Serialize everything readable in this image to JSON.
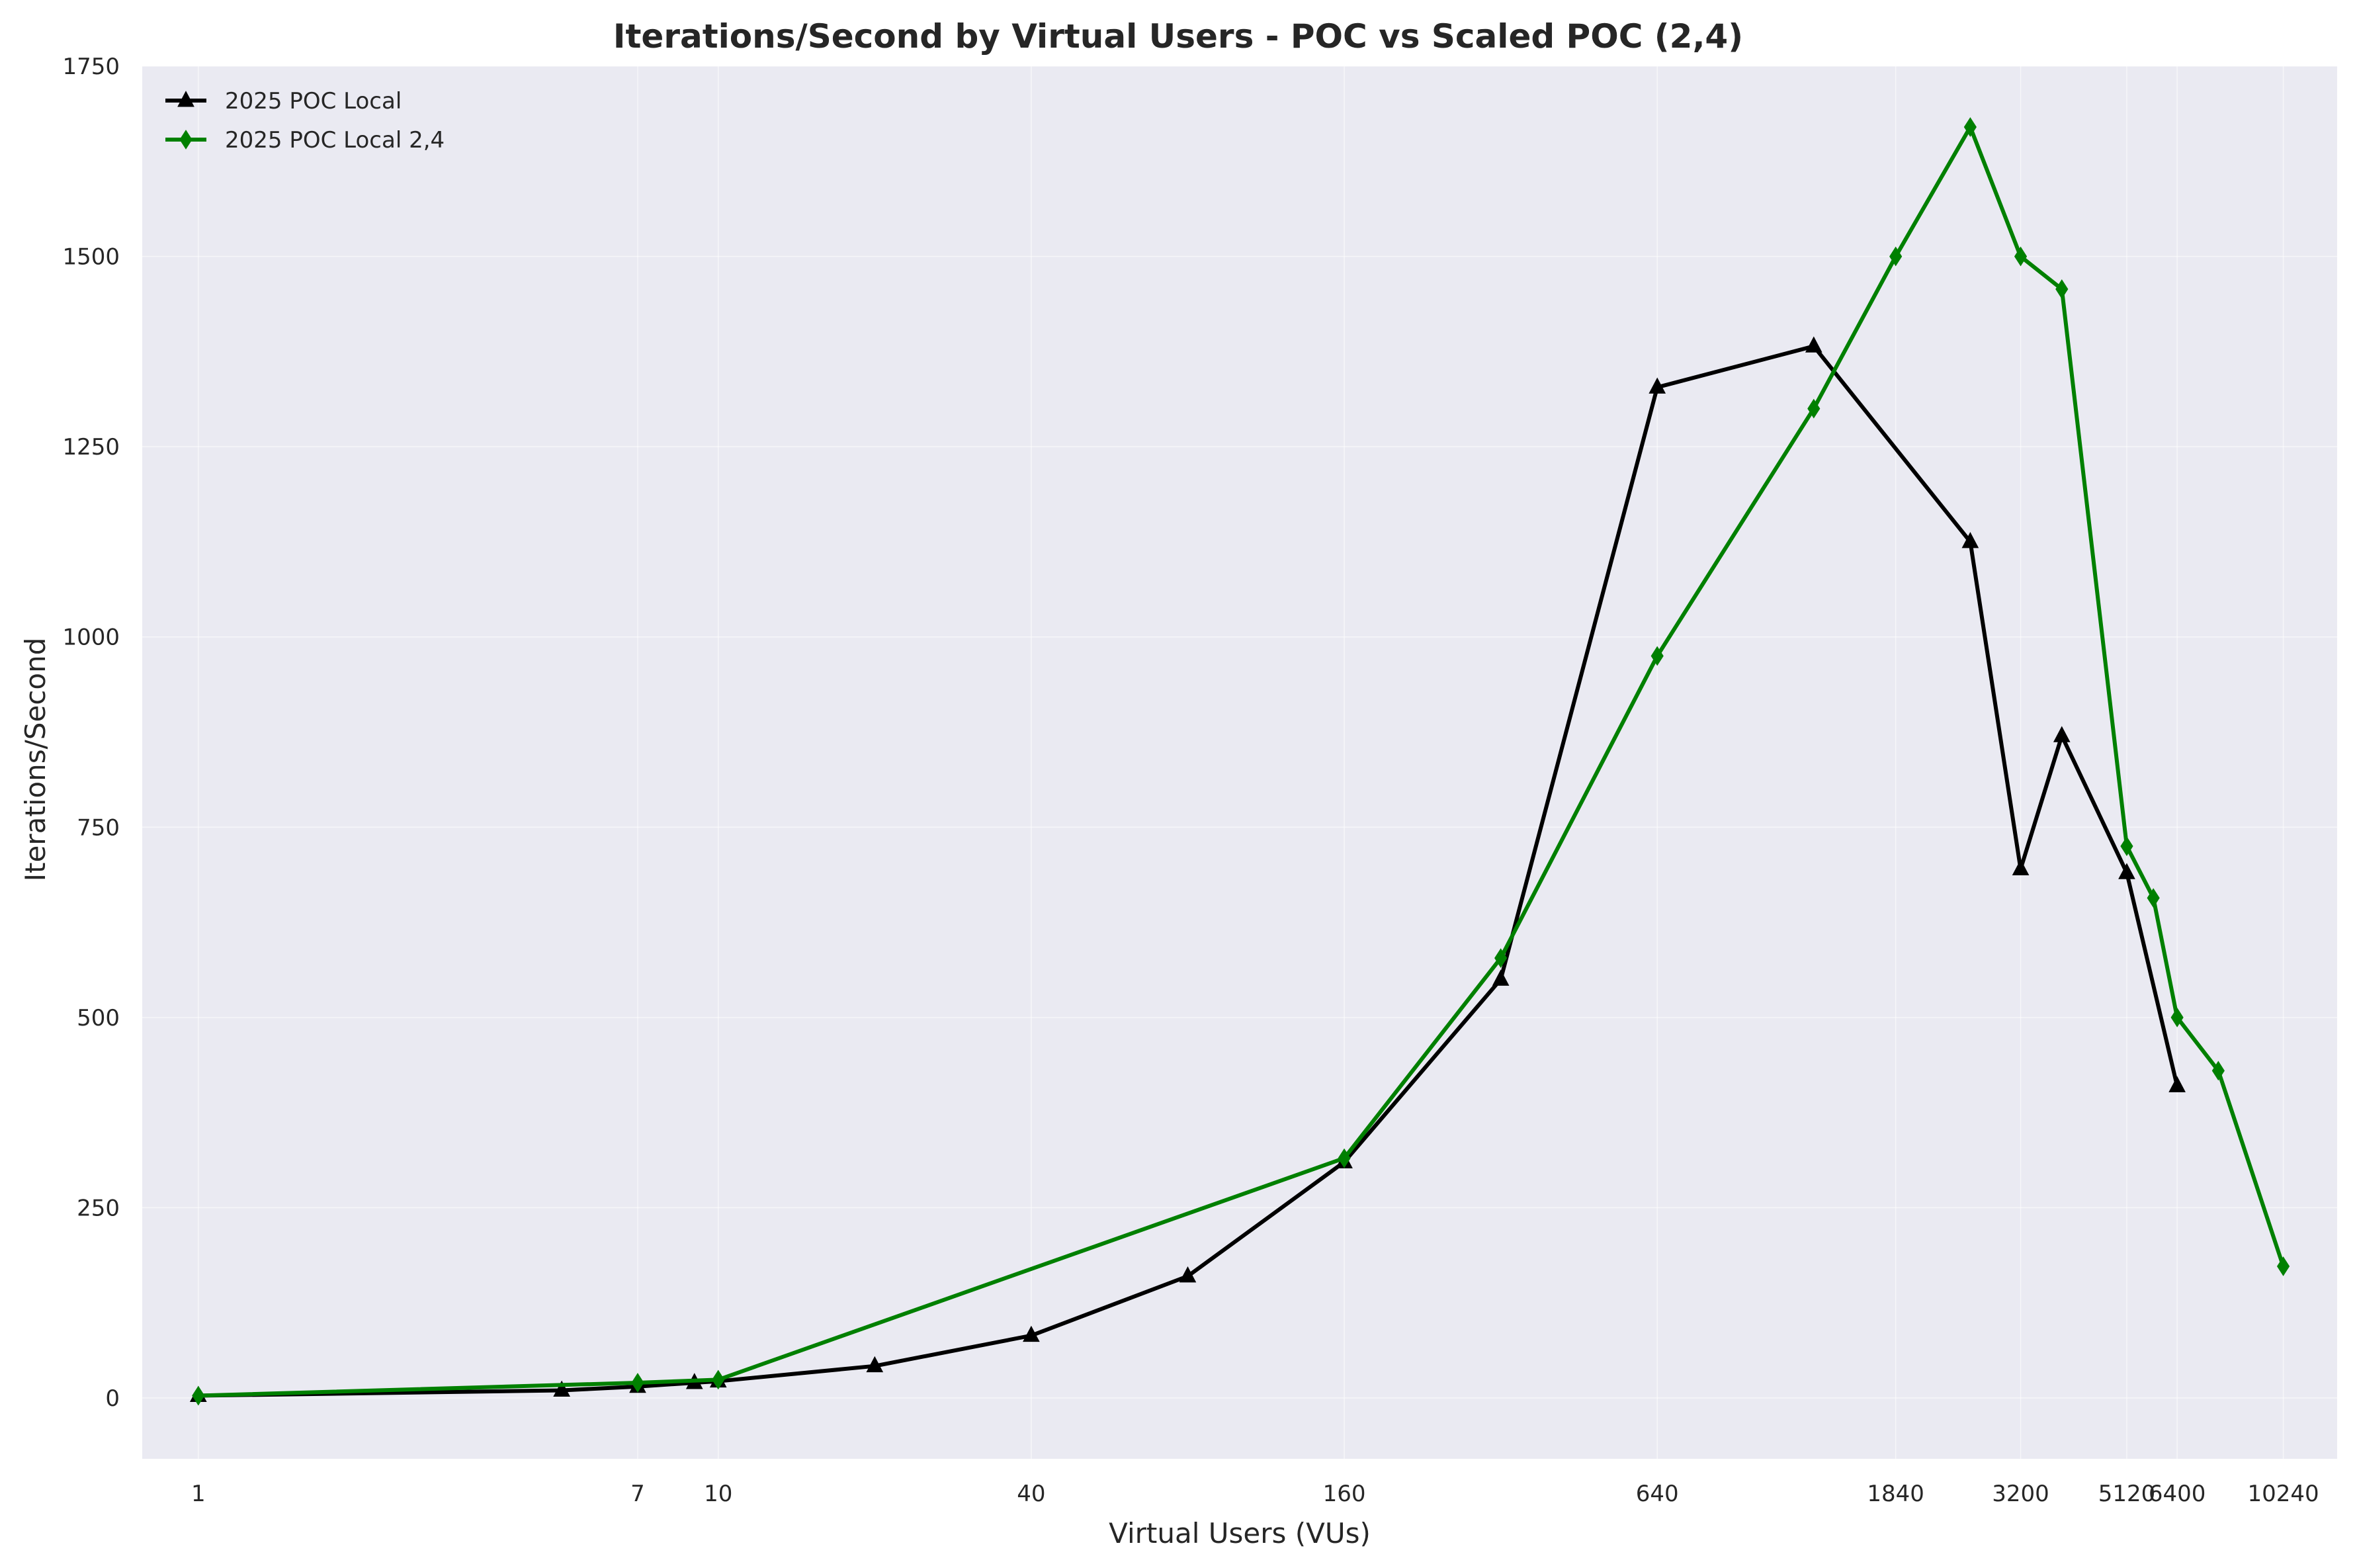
{
  "chart_data": {
    "type": "line",
    "title": "Iterations/Second by Virtual Users - POC vs Scaled POC (2,4)",
    "xlabel": "Virtual Users (VUs)",
    "ylabel": "Iterations/Second",
    "x_scale": "log",
    "xlim": [
      0.78,
      13000
    ],
    "ylim": [
      -80,
      1750
    ],
    "grid": true,
    "legend_position": "top-left",
    "x_ticks": [
      1,
      7,
      10,
      40,
      160,
      640,
      1840,
      3200,
      5120,
      6400,
      10240
    ],
    "x_tick_labels": [
      "1",
      "7",
      "10",
      "40",
      "160",
      "640",
      "1840",
      "3200",
      "5120",
      "6400",
      "10240"
    ],
    "y_ticks": [
      0,
      250,
      500,
      750,
      1000,
      1250,
      1500,
      1750
    ],
    "y_tick_labels": [
      "0",
      "250",
      "500",
      "750",
      "1000",
      "1250",
      "1500",
      "1750"
    ],
    "series": [
      {
        "name": "2025 POC Local",
        "color": "#000000",
        "marker": "triangle",
        "x": [
          1,
          5,
          7,
          9,
          10,
          20,
          40,
          80,
          160,
          320,
          640,
          1280,
          2560,
          3200,
          3840,
          5120,
          6400
        ],
        "y": [
          3,
          10,
          15,
          20,
          22,
          42,
          82,
          160,
          310,
          550,
          1328,
          1382,
          1125,
          695,
          870,
          690,
          410
        ]
      },
      {
        "name": "2025 POC Local 2,4",
        "color": "#008000",
        "marker": "diamond",
        "x": [
          1,
          7,
          10,
          160,
          320,
          640,
          1280,
          1840,
          2560,
          3200,
          3840,
          5120,
          5760,
          6400,
          7680,
          10240
        ],
        "y": [
          3,
          20,
          24,
          315,
          578,
          975,
          1300,
          1500,
          1670,
          1500,
          1457,
          725,
          657,
          500,
          430,
          173
        ]
      }
    ]
  }
}
